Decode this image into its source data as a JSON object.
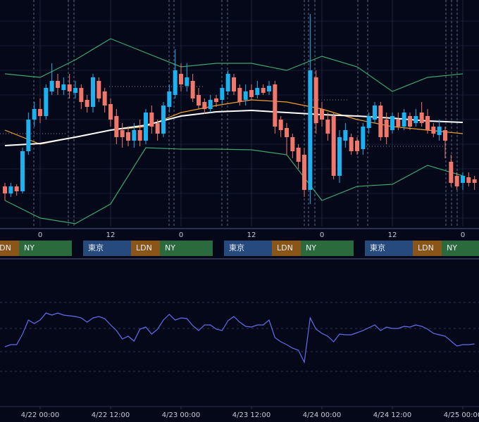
{
  "chart_data": [
    {
      "type": "candlestick",
      "x": [
        -6,
        -5,
        -4,
        -3,
        -2,
        -1,
        0,
        1,
        2,
        3,
        4,
        5,
        6,
        7,
        8,
        9,
        10,
        11,
        12,
        13,
        14,
        15,
        16,
        17,
        18,
        19,
        20,
        21,
        22,
        23,
        24,
        25,
        26,
        27,
        28,
        29,
        30,
        31,
        32,
        33,
        34,
        35,
        36,
        37,
        38,
        39,
        40,
        41,
        42,
        43,
        44,
        45,
        46,
        47,
        48,
        49,
        50,
        51,
        52,
        53,
        54,
        55,
        56,
        57,
        58,
        59,
        60,
        61,
        62,
        63,
        64,
        65,
        66,
        67,
        68,
        69,
        70,
        71,
        72,
        73,
        74
      ],
      "open": [
        55,
        45,
        55,
        48,
        105,
        150,
        165,
        155,
        190,
        205,
        192,
        200,
        188,
        195,
        178,
        168,
        205,
        190,
        172,
        155,
        135,
        132,
        120,
        135,
        120,
        160,
        145,
        130,
        168,
        185,
        215,
        198,
        205,
        185,
        175,
        165,
        180,
        178,
        190,
        210,
        195,
        178,
        192,
        185,
        195,
        190,
        200,
        150,
        138,
        125,
        110,
        100,
        50,
        210,
        165,
        150,
        155,
        70,
        120,
        125,
        120,
        108,
        138,
        150,
        170,
        150,
        135,
        150,
        140,
        155,
        145,
        160,
        155,
        140,
        128,
        135,
        90,
        70,
        60,
        68,
        65
      ],
      "high": [
        60,
        60,
        58,
        110,
        160,
        175,
        180,
        200,
        230,
        215,
        210,
        215,
        205,
        200,
        185,
        215,
        210,
        195,
        180,
        165,
        145,
        140,
        145,
        150,
        165,
        170,
        150,
        175,
        200,
        250,
        230,
        230,
        215,
        195,
        180,
        185,
        185,
        200,
        220,
        215,
        200,
        200,
        200,
        205,
        200,
        205,
        205,
        155,
        145,
        130,
        115,
        110,
        300,
        220,
        175,
        160,
        160,
        135,
        145,
        130,
        125,
        145,
        160,
        175,
        175,
        160,
        160,
        160,
        165,
        160,
        165,
        175,
        165,
        145,
        150,
        140,
        100,
        75,
        75,
        75,
        70
      ],
      "low": [
        35,
        40,
        42,
        45,
        100,
        140,
        145,
        150,
        185,
        185,
        185,
        180,
        180,
        165,
        160,
        160,
        175,
        160,
        140,
        115,
        110,
        112,
        110,
        112,
        115,
        130,
        120,
        125,
        160,
        180,
        190,
        190,
        175,
        165,
        158,
        160,
        168,
        172,
        185,
        185,
        170,
        170,
        178,
        180,
        185,
        185,
        130,
        125,
        100,
        95,
        80,
        40,
        30,
        130,
        140,
        120,
        65,
        60,
        110,
        100,
        100,
        100,
        130,
        145,
        120,
        115,
        130,
        135,
        135,
        135,
        140,
        140,
        130,
        125,
        120,
        95,
        55,
        50,
        50,
        55,
        50
      ],
      "close": [
        45,
        55,
        48,
        105,
        150,
        165,
        155,
        195,
        205,
        195,
        200,
        190,
        195,
        175,
        168,
        210,
        180,
        170,
        150,
        125,
        125,
        120,
        135,
        120,
        160,
        140,
        130,
        170,
        190,
        220,
        200,
        210,
        180,
        170,
        165,
        178,
        175,
        195,
        215,
        190,
        175,
        190,
        182,
        195,
        188,
        198,
        140,
        135,
        125,
        105,
        90,
        50,
        220,
        145,
        150,
        130,
        70,
        125,
        135,
        105,
        105,
        140,
        155,
        170,
        125,
        125,
        155,
        140,
        160,
        140,
        155,
        145,
        135,
        130,
        140,
        120,
        60,
        55,
        70,
        60,
        60
      ],
      "up_color": "#1ab2f0",
      "down_color": "#f0776a",
      "lines": [
        {
          "color": "#3aa86a",
          "x": [
            -6,
            0,
            6,
            12,
            18,
            24,
            30,
            36,
            42,
            48,
            54,
            60,
            66,
            72
          ],
          "values": [
            215,
            210,
            235,
            265,
            245,
            225,
            230,
            230,
            220,
            240,
            225,
            190,
            210,
            215
          ]
        },
        {
          "color": "#3aa86a",
          "x": [
            -6,
            0,
            6,
            12,
            18,
            24,
            30,
            36,
            42,
            48,
            54,
            60,
            66,
            72
          ],
          "values": [
            35,
            10,
            2,
            30,
            110,
            108,
            108,
            107,
            100,
            35,
            55,
            58,
            85,
            70
          ]
        },
        {
          "color": "#f0a030",
          "x": [
            -6,
            0,
            6,
            12,
            18,
            24,
            30,
            36,
            42,
            48,
            54,
            60,
            66,
            72
          ],
          "values": [
            135,
            115,
            125,
            135,
            140,
            160,
            170,
            178,
            175,
            165,
            150,
            140,
            135,
            130
          ]
        },
        {
          "color": "#ffffff",
          "x": [
            -6,
            0,
            6,
            12,
            18,
            24,
            30,
            36,
            42,
            48,
            54,
            60,
            66,
            72
          ],
          "values": [
            113,
            116,
            125,
            135,
            142,
            155,
            161,
            163,
            160,
            157,
            155,
            152,
            148,
            146
          ]
        }
      ],
      "xlim": [
        -6.84,
        74.76
      ],
      "ylim": [
        0,
        320
      ],
      "xticks": [
        0,
        12,
        {
          "value": 24,
          "label": "0"
        },
        {
          "value": 36,
          "label": "12"
        },
        {
          "value": 48,
          "label": "0"
        },
        {
          "value": 60,
          "label": "12"
        },
        {
          "value": 72,
          "label": "0"
        }
      ],
      "sessions": [
        "東京",
        "LDN",
        "NY"
      ]
    },
    {
      "type": "line",
      "x": [
        -6,
        -5,
        -4,
        -3,
        -2,
        -1,
        0,
        1,
        2,
        3,
        4,
        5,
        6,
        7,
        8,
        9,
        10,
        11,
        12,
        13,
        14,
        15,
        16,
        17,
        18,
        19,
        20,
        21,
        22,
        23,
        24,
        25,
        26,
        27,
        28,
        29,
        30,
        31,
        32,
        33,
        34,
        35,
        36,
        37,
        38,
        39,
        40,
        41,
        42,
        43,
        44,
        45,
        46,
        47,
        48,
        49,
        50,
        51,
        52,
        53,
        54,
        55,
        56,
        57,
        58,
        59,
        60,
        61,
        62,
        63,
        64,
        65,
        66,
        67,
        68,
        69,
        70,
        71,
        72,
        73,
        74
      ],
      "values": [
        41,
        42.5,
        42.5,
        50,
        60,
        57.5,
        60,
        65,
        63.5,
        65,
        63.5,
        63,
        62.5,
        61.5,
        58.5,
        61.5,
        62.5,
        61,
        56.5,
        52.5,
        46.5,
        48.5,
        45,
        53.5,
        55,
        50,
        53.5,
        60,
        64,
        60,
        61.5,
        61,
        56,
        52.5,
        56.5,
        56.5,
        53.5,
        52.5,
        59.5,
        62.5,
        58.5,
        55.5,
        55,
        56.5,
        56.5,
        60,
        47.5,
        44.5,
        42.5,
        40,
        38.5,
        30,
        61.5,
        53.5,
        50.5,
        48.5,
        44.5,
        50,
        49.5,
        49.5,
        51,
        52.5,
        54.5,
        56.5,
        52.5,
        55,
        54,
        54,
        55.5,
        55,
        56.5,
        55.5,
        53.5,
        50.5,
        49.5,
        48.5,
        45,
        41.5,
        42.5,
        42.5,
        43
      ],
      "color": "#5f6ef0",
      "xlim": [
        -6.84,
        74.76
      ],
      "ylim": [
        0,
        100
      ],
      "xticks": [
        {
          "value": 0,
          "label": "4/22 00:00"
        },
        {
          "value": 12,
          "label": "4/22 12:00"
        },
        {
          "value": 24,
          "label": "4/23 00:00"
        },
        {
          "value": 36,
          "label": "4/23 12:00"
        },
        {
          "value": 48,
          "label": "4/24 00:00"
        },
        {
          "value": 60,
          "label": "4/24 12:00"
        },
        {
          "value": 72,
          "label": "4/25 00:00"
        }
      ]
    }
  ]
}
